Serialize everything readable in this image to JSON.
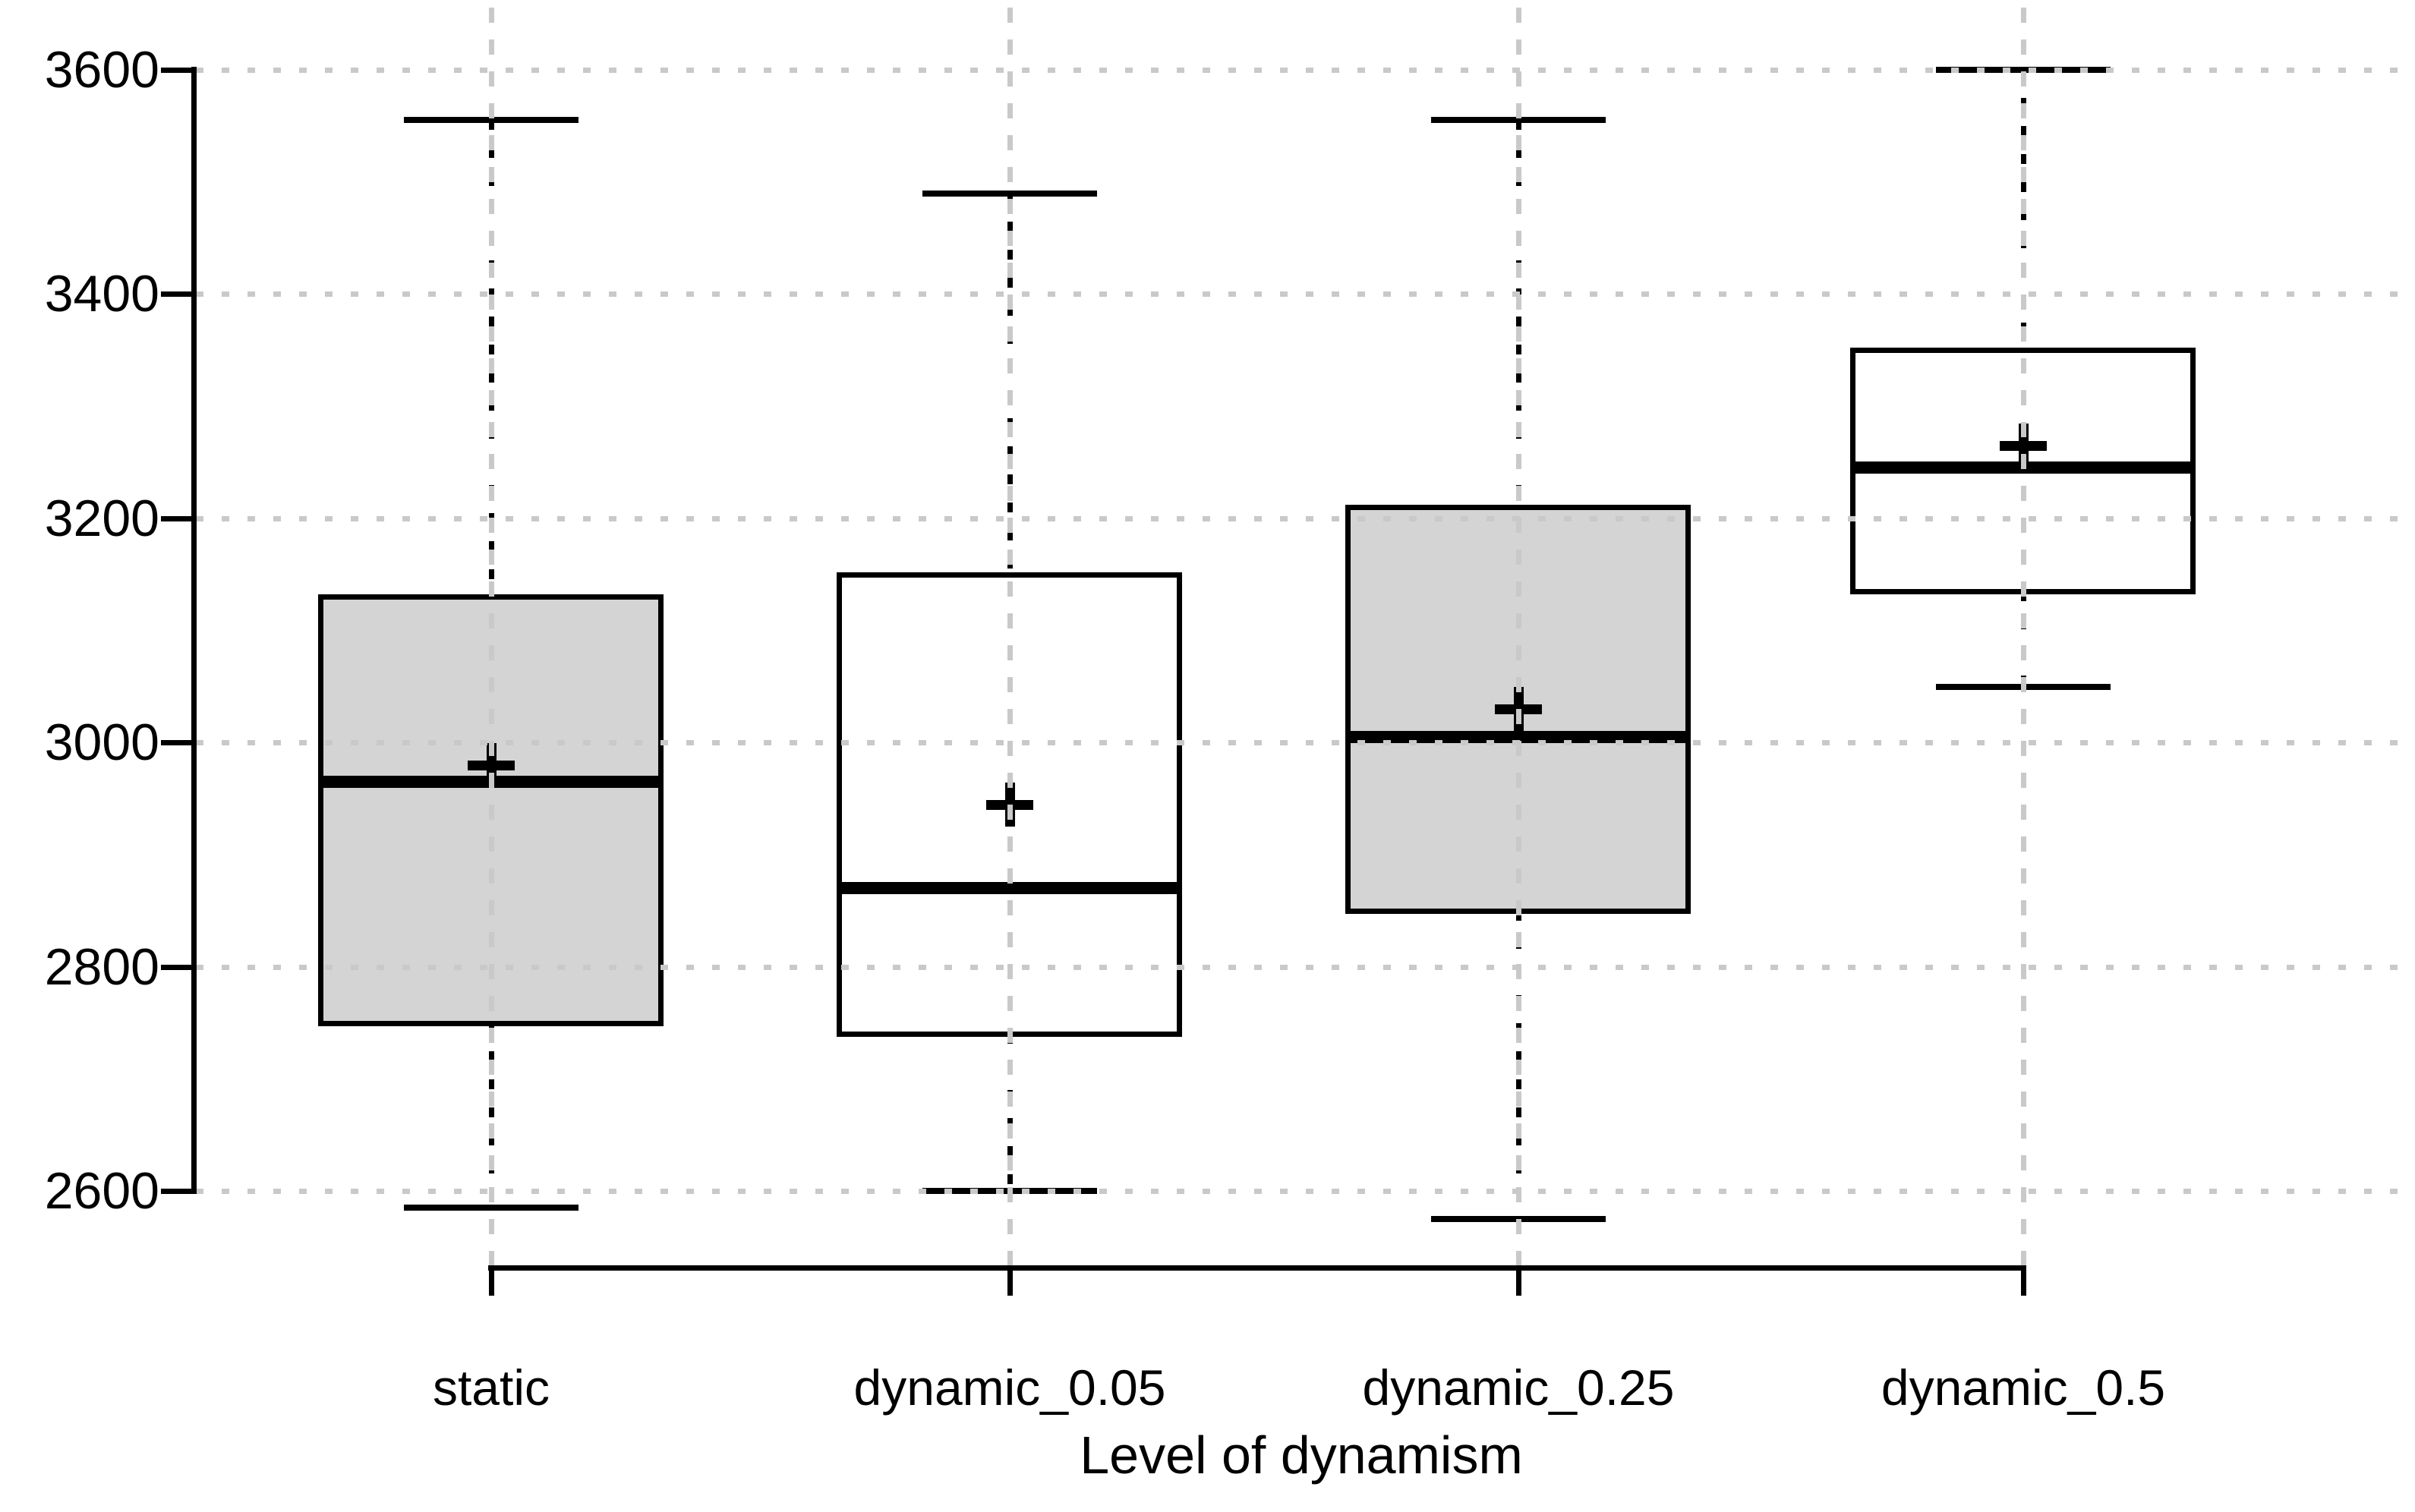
{
  "chart_data": {
    "type": "boxplot",
    "title": "",
    "xlabel": "Level of dynamism",
    "ylabel": "",
    "ylim": [
      2600,
      3600
    ],
    "yticks": [
      2600,
      2800,
      3000,
      3200,
      3400,
      3600
    ],
    "grid": true,
    "legend_position": "none",
    "categories": [
      "static",
      "dynamic_0.05",
      "dynamic_0.25",
      "dynamic_0.5"
    ],
    "series": [
      {
        "name": "static",
        "fill": "gray",
        "whisker_low": 2585,
        "q1": 2750,
        "median": 2965,
        "mean": 2980,
        "q3": 3130,
        "whisker_high": 3555
      },
      {
        "name": "dynamic_0.05",
        "fill": "white",
        "whisker_low": 2600,
        "q1": 2740,
        "median": 2870,
        "mean": 2945,
        "q3": 3150,
        "whisker_high": 3490
      },
      {
        "name": "dynamic_0.25",
        "fill": "gray",
        "whisker_low": 2575,
        "q1": 2850,
        "median": 3005,
        "mean": 3030,
        "q3": 3210,
        "whisker_high": 3555
      },
      {
        "name": "dynamic_0.5",
        "fill": "white",
        "whisker_low": 3050,
        "q1": 3135,
        "median": 3245,
        "mean": 3265,
        "q3": 3350,
        "whisker_high": 3600
      }
    ],
    "colors": {
      "box_fill_gray": "#d4d4d4",
      "box_fill_white": "#ffffff",
      "line": "#000000",
      "grid": "#c9c9c9"
    }
  }
}
